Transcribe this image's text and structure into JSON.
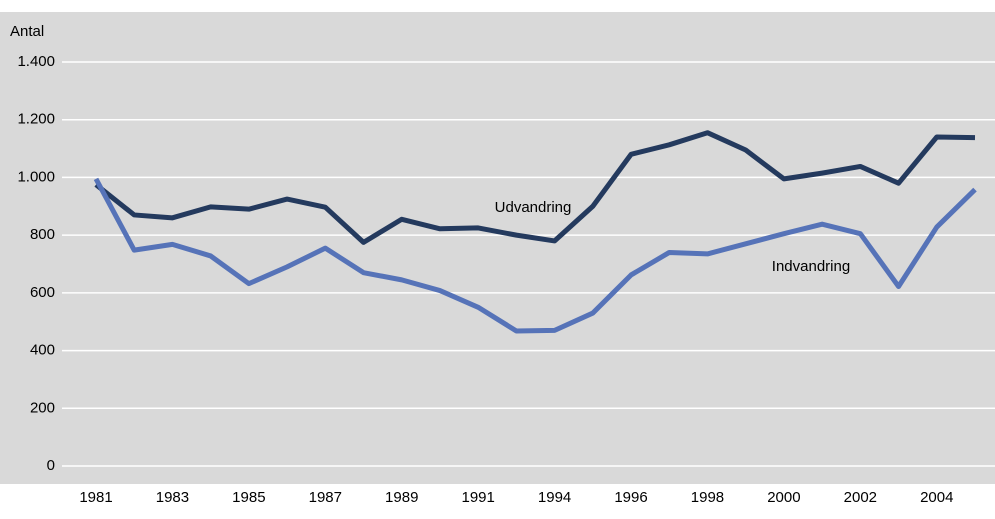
{
  "chart_data": {
    "type": "line",
    "y_label": "Antal",
    "categories": [
      "1981",
      null,
      "1983",
      null,
      "1985",
      null,
      "1987",
      null,
      "1989",
      null,
      "1991",
      null,
      "1994",
      null,
      "1996",
      null,
      "1998",
      null,
      "2000",
      null,
      "2002",
      null,
      "2004",
      null
    ],
    "series": [
      {
        "name": "Udvandring",
        "color": "#243a5e",
        "values": [
          975,
          870,
          860,
          898,
          890,
          925,
          897,
          775,
          855,
          822,
          825,
          800,
          780,
          900,
          1080,
          1113,
          1155,
          1095,
          995,
          1015,
          1038,
          980,
          1140,
          1138
        ]
      },
      {
        "name": "Indvandring",
        "color": "#5673b8",
        "values": [
          995,
          748,
          768,
          728,
          632,
          690,
          755,
          670,
          645,
          608,
          550,
          468,
          470,
          530,
          662,
          740,
          735,
          770,
          805,
          838,
          805,
          622,
          828,
          958
        ]
      }
    ],
    "ylim": [
      0,
      1400
    ],
    "yticks": [
      0,
      200,
      400,
      600,
      800,
      {
        "value": 1000,
        "label": "1.000"
      },
      {
        "value": 1200,
        "label": "1.200"
      },
      {
        "value": 1400,
        "label": "1.400"
      }
    ],
    "grid": true
  }
}
